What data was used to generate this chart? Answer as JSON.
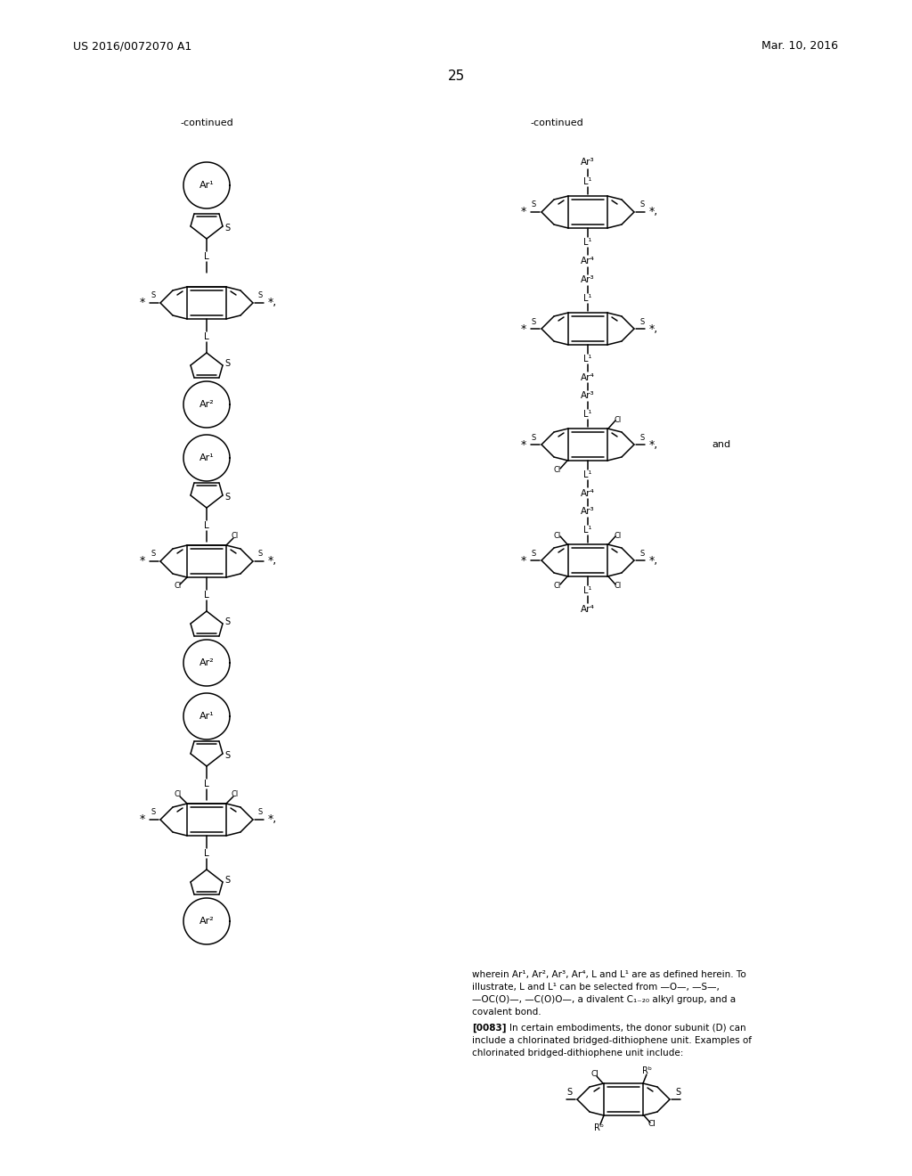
{
  "page_number": "25",
  "patent_number": "US 2016/0072070 A1",
  "patent_date": "Mar. 10, 2016",
  "background_color": "#ffffff"
}
